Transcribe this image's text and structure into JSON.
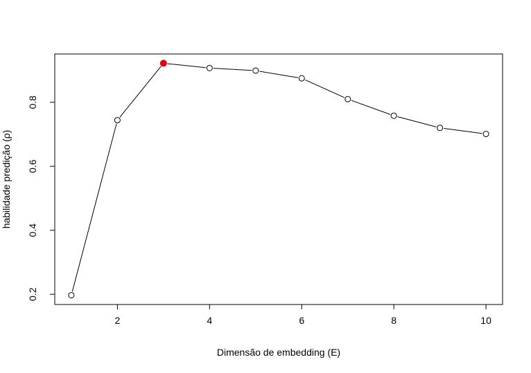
{
  "chart_data": {
    "type": "line",
    "title": "",
    "xlabel": "Dimensão de embedding (E)",
    "ylabel": "habilidade predição (ρ)",
    "xlim": [
      0.64,
      10.36
    ],
    "ylim": [
      0.168,
      0.951
    ],
    "x_ticks": [
      2,
      4,
      6,
      8,
      10
    ],
    "y_ticks": [
      0.2,
      0.4,
      0.6,
      0.8
    ],
    "x_tick_labels": [
      "2",
      "4",
      "6",
      "8",
      "10"
    ],
    "y_tick_labels": [
      "0.2",
      "0.4",
      "0.6",
      "0.8"
    ],
    "grid": false,
    "series": [
      {
        "x": [
          1,
          2,
          3,
          4,
          5,
          6,
          7,
          8,
          9,
          10
        ],
        "y": [
          0.197,
          0.744,
          0.922,
          0.907,
          0.899,
          0.875,
          0.81,
          0.758,
          0.72,
          0.701
        ],
        "color": "#000000",
        "marker": "open-circle"
      }
    ],
    "highlight": {
      "x": 3,
      "y": 0.922,
      "color": "#e8000b"
    }
  }
}
